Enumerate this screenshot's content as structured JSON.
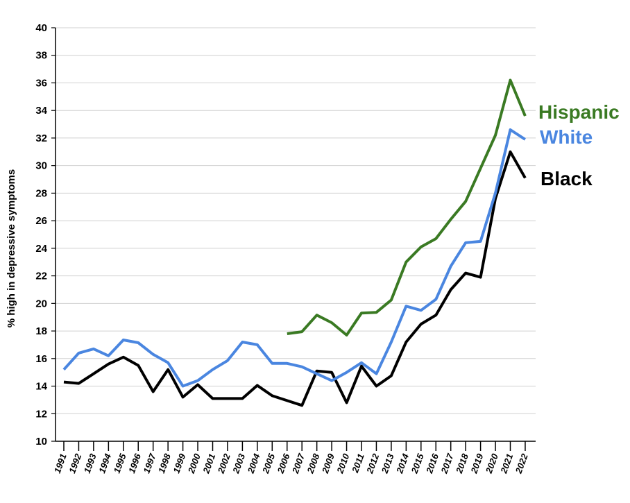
{
  "chart_data": {
    "type": "line",
    "title": "",
    "xlabel": "",
    "ylabel": "% high in depressive symptoms",
    "ylim": [
      10,
      40
    ],
    "yticks": [
      10,
      12,
      14,
      16,
      18,
      20,
      22,
      24,
      26,
      28,
      30,
      32,
      34,
      36,
      38,
      40
    ],
    "grid": "horizontal",
    "legend": "inline-right",
    "x": [
      "1991",
      "1992",
      "1993",
      "1994",
      "1995",
      "1996",
      "1997",
      "1998",
      "1999",
      "2000",
      "2001",
      "2002",
      "2003",
      "2004",
      "2005",
      "2006",
      "2007",
      "2008",
      "2009",
      "2010",
      "2011",
      "2012",
      "2013",
      "2014",
      "2015",
      "2016",
      "2017",
      "2018",
      "2019",
      "2020",
      "2021",
      "2022"
    ],
    "series": [
      {
        "name": "Hispanic",
        "color": "#3a7a23",
        "values": [
          null,
          null,
          null,
          null,
          null,
          null,
          null,
          null,
          null,
          null,
          null,
          null,
          null,
          null,
          null,
          17.8,
          17.95,
          19.15,
          18.6,
          17.7,
          19.3,
          19.35,
          20.25,
          23.0,
          24.1,
          24.7,
          26.1,
          27.4,
          29.8,
          32.2,
          36.2,
          33.6
        ]
      },
      {
        "name": "White",
        "color": "#4a86e0",
        "values": [
          15.2,
          16.4,
          16.7,
          16.2,
          17.35,
          17.15,
          16.3,
          15.7,
          14.0,
          14.4,
          15.2,
          15.85,
          17.2,
          17.0,
          15.65,
          15.65,
          15.4,
          14.9,
          14.4,
          15.0,
          15.7,
          14.9,
          17.2,
          19.8,
          19.5,
          20.3,
          22.7,
          24.4,
          24.5,
          28.0,
          32.6,
          31.9
        ]
      },
      {
        "name": "Black",
        "color": "#000000",
        "values": [
          14.3,
          14.2,
          14.9,
          15.6,
          16.1,
          15.5,
          13.6,
          15.2,
          13.2,
          14.1,
          13.1,
          13.1,
          13.1,
          14.05,
          13.3,
          12.95,
          12.6,
          15.1,
          15.0,
          12.8,
          15.45,
          14.0,
          14.75,
          17.2,
          18.5,
          19.15,
          21.0,
          22.2,
          21.9,
          27.6,
          31.0,
          29.1
        ]
      }
    ]
  }
}
